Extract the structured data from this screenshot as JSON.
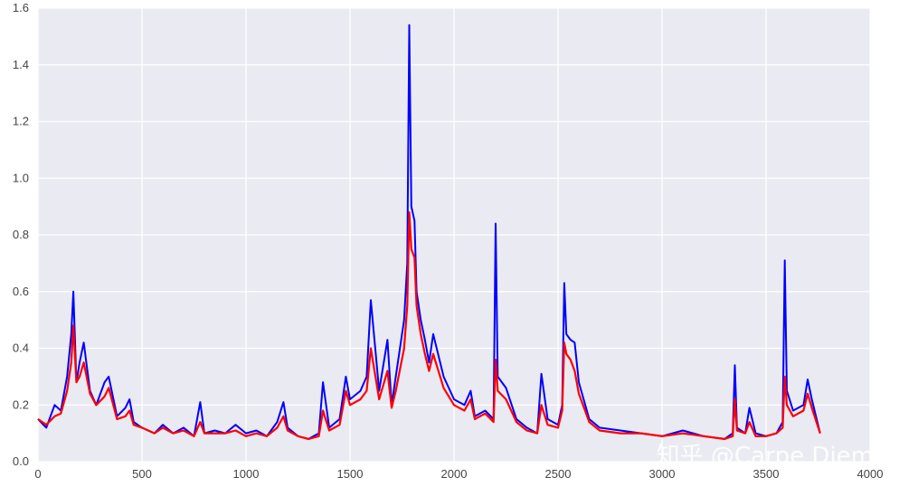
{
  "chart_data": {
    "type": "line",
    "title": "",
    "xlabel": "",
    "ylabel": "",
    "xlim": [
      0,
      4000
    ],
    "ylim": [
      0,
      1.6
    ],
    "x_ticks": [
      0,
      500,
      1000,
      1500,
      2000,
      2500,
      3000,
      3500,
      4000
    ],
    "y_ticks": [
      0.0,
      0.2,
      0.4,
      0.6,
      0.8,
      1.0,
      1.2,
      1.4,
      1.6
    ],
    "x_tick_labels": [
      "0",
      "500",
      "1000",
      "1500",
      "2000",
      "2500",
      "3000",
      "3500",
      "4000"
    ],
    "y_tick_labels": [
      "0.0",
      "0.2",
      "0.4",
      "0.6",
      "0.8",
      "1.0",
      "1.2",
      "1.4",
      "1.6"
    ],
    "grid": true,
    "legend": "none",
    "series": [
      {
        "color": "#0000ff",
        "x": [
          0,
          40,
          80,
          110,
          140,
          160,
          170,
          185,
          200,
          220,
          250,
          280,
          320,
          340,
          380,
          420,
          440,
          460,
          500,
          560,
          600,
          650,
          700,
          750,
          780,
          800,
          850,
          900,
          950,
          1000,
          1050,
          1100,
          1150,
          1180,
          1200,
          1250,
          1300,
          1350,
          1370,
          1400,
          1450,
          1480,
          1500,
          1550,
          1580,
          1600,
          1640,
          1680,
          1700,
          1720,
          1760,
          1775,
          1785,
          1795,
          1810,
          1820,
          1840,
          1860,
          1880,
          1900,
          1950,
          2000,
          2050,
          2080,
          2100,
          2150,
          2190,
          2200,
          2210,
          2250,
          2300,
          2350,
          2400,
          2420,
          2450,
          2500,
          2520,
          2530,
          2540,
          2560,
          2580,
          2600,
          2650,
          2700,
          2800,
          2900,
          3000,
          3100,
          3200,
          3300,
          3340,
          3350,
          3360,
          3400,
          3420,
          3450,
          3500,
          3550,
          3580,
          3590,
          3600,
          3630,
          3680,
          3700,
          3720,
          3760
        ],
        "y": [
          0.15,
          0.12,
          0.2,
          0.18,
          0.3,
          0.45,
          0.6,
          0.28,
          0.35,
          0.42,
          0.25,
          0.2,
          0.28,
          0.3,
          0.16,
          0.19,
          0.22,
          0.14,
          0.12,
          0.1,
          0.13,
          0.1,
          0.12,
          0.09,
          0.21,
          0.1,
          0.11,
          0.1,
          0.13,
          0.1,
          0.11,
          0.09,
          0.14,
          0.21,
          0.12,
          0.09,
          0.08,
          0.1,
          0.28,
          0.12,
          0.15,
          0.3,
          0.22,
          0.25,
          0.3,
          0.57,
          0.25,
          0.43,
          0.2,
          0.3,
          0.5,
          0.7,
          1.54,
          0.9,
          0.85,
          0.6,
          0.5,
          0.43,
          0.35,
          0.45,
          0.3,
          0.22,
          0.2,
          0.25,
          0.16,
          0.18,
          0.15,
          0.84,
          0.3,
          0.26,
          0.15,
          0.12,
          0.1,
          0.31,
          0.15,
          0.13,
          0.2,
          0.63,
          0.45,
          0.43,
          0.42,
          0.28,
          0.15,
          0.12,
          0.11,
          0.1,
          0.09,
          0.11,
          0.09,
          0.08,
          0.1,
          0.34,
          0.12,
          0.1,
          0.19,
          0.1,
          0.09,
          0.1,
          0.14,
          0.71,
          0.25,
          0.18,
          0.2,
          0.29,
          0.22,
          0.1
        ]
      },
      {
        "color": "#ff0000",
        "x": [
          0,
          40,
          80,
          110,
          140,
          160,
          170,
          185,
          200,
          220,
          250,
          280,
          320,
          340,
          380,
          420,
          440,
          460,
          500,
          560,
          600,
          650,
          700,
          750,
          780,
          800,
          850,
          900,
          950,
          1000,
          1050,
          1100,
          1150,
          1180,
          1200,
          1250,
          1300,
          1350,
          1370,
          1400,
          1450,
          1480,
          1500,
          1550,
          1580,
          1600,
          1640,
          1680,
          1700,
          1720,
          1760,
          1775,
          1785,
          1795,
          1810,
          1820,
          1840,
          1860,
          1880,
          1900,
          1950,
          2000,
          2050,
          2080,
          2100,
          2150,
          2190,
          2200,
          2210,
          2250,
          2300,
          2350,
          2400,
          2420,
          2450,
          2500,
          2520,
          2530,
          2540,
          2560,
          2580,
          2600,
          2650,
          2700,
          2800,
          2900,
          3000,
          3100,
          3200,
          3300,
          3340,
          3350,
          3360,
          3400,
          3420,
          3450,
          3500,
          3550,
          3580,
          3590,
          3600,
          3630,
          3680,
          3700,
          3720,
          3760
        ],
        "y": [
          0.15,
          0.13,
          0.16,
          0.17,
          0.25,
          0.35,
          0.48,
          0.28,
          0.3,
          0.35,
          0.24,
          0.2,
          0.23,
          0.26,
          0.15,
          0.16,
          0.18,
          0.13,
          0.12,
          0.1,
          0.12,
          0.1,
          0.11,
          0.09,
          0.14,
          0.1,
          0.1,
          0.1,
          0.11,
          0.09,
          0.1,
          0.09,
          0.12,
          0.16,
          0.11,
          0.09,
          0.08,
          0.09,
          0.18,
          0.11,
          0.13,
          0.25,
          0.2,
          0.22,
          0.25,
          0.4,
          0.22,
          0.32,
          0.19,
          0.25,
          0.4,
          0.55,
          0.88,
          0.75,
          0.72,
          0.55,
          0.45,
          0.38,
          0.32,
          0.38,
          0.26,
          0.2,
          0.18,
          0.22,
          0.15,
          0.17,
          0.14,
          0.36,
          0.25,
          0.22,
          0.14,
          0.11,
          0.1,
          0.2,
          0.13,
          0.12,
          0.18,
          0.42,
          0.38,
          0.36,
          0.32,
          0.24,
          0.14,
          0.11,
          0.1,
          0.1,
          0.09,
          0.1,
          0.09,
          0.08,
          0.09,
          0.22,
          0.11,
          0.1,
          0.14,
          0.09,
          0.09,
          0.1,
          0.12,
          0.3,
          0.2,
          0.16,
          0.18,
          0.24,
          0.19,
          0.1
        ]
      }
    ]
  },
  "watermark": "知乎 @Carpe Diem"
}
